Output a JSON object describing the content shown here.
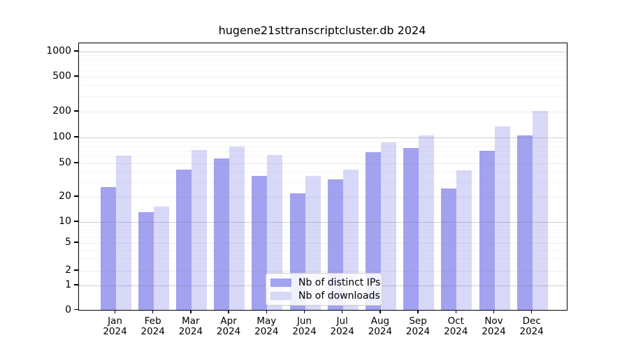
{
  "chart_data": {
    "type": "bar",
    "title": "hugene21sttranscriptcluster.db 2024",
    "categories": [
      "Jan 2024",
      "Feb 2024",
      "Mar 2024",
      "Apr 2024",
      "May 2024",
      "Jun 2024",
      "Jul 2024",
      "Aug 2024",
      "Sep 2024",
      "Oct 2024",
      "Nov 2024",
      "Dec 2024"
    ],
    "series": [
      {
        "name": "Nb of distinct IPs",
        "color": "#a2a2f0",
        "values": [
          26,
          13,
          42,
          57,
          35,
          22,
          32,
          67,
          75,
          25,
          70,
          104
        ]
      },
      {
        "name": "Nb of downloads",
        "color": "#d8d8f8",
        "values": [
          61,
          15,
          71,
          78,
          62,
          35,
          42,
          87,
          105,
          41,
          133,
          202
        ]
      }
    ],
    "yscale": "log",
    "ylim": [
      0,
      1000
    ],
    "y_ticks": [
      0,
      1,
      2,
      5,
      10,
      20,
      50,
      100,
      200,
      500,
      1000
    ],
    "grid": true,
    "legend_position": "bottom-center",
    "background_color": "#ffffff",
    "axis_color": "#000000"
  }
}
